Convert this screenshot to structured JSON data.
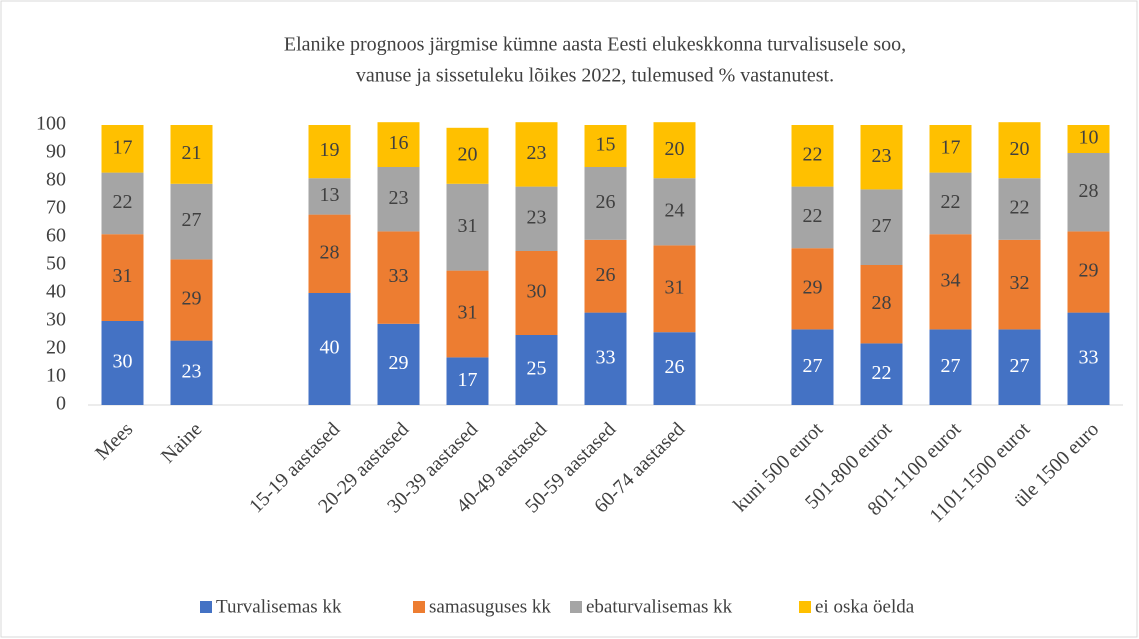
{
  "chart_data": {
    "type": "stacked_bar",
    "title": [
      "Elanike prognoos järgmise kümne aasta Eesti elukeskkonna turvalisusele soo,",
      "vanuse ja sissetuleku lõikes 2022, tulemused % vastanutest."
    ],
    "categories": [
      "Mees",
      "Naine",
      null,
      "15-19 aastased",
      "20-29 aastased",
      "30-39 aastased",
      "40-49 aastased",
      "50-59 aastased",
      "60-74 aastased",
      null,
      "kuni 500 eurot",
      "501-800 eurot",
      "801-1100 eurot",
      "1101-1500 eurot",
      "üle 1500 euro"
    ],
    "series": [
      {
        "name": "Turvalisemas kk",
        "color": "#4472c4",
        "values": [
          30,
          23,
          null,
          40,
          29,
          17,
          25,
          33,
          26,
          null,
          27,
          22,
          27,
          27,
          33
        ]
      },
      {
        "name": "samasuguses kk",
        "color": "#ed7d31",
        "values": [
          31,
          29,
          null,
          28,
          33,
          31,
          30,
          26,
          31,
          null,
          29,
          28,
          34,
          32,
          29
        ]
      },
      {
        "name": "ebaturvalisemas kk",
        "color": "#a5a5a5",
        "values": [
          22,
          27,
          null,
          13,
          23,
          31,
          23,
          26,
          24,
          null,
          22,
          27,
          22,
          22,
          28
        ]
      },
      {
        "name": "ei oska öelda",
        "color": "#ffc000",
        "values": [
          17,
          21,
          null,
          19,
          16,
          20,
          23,
          15,
          20,
          null,
          22,
          23,
          17,
          20,
          10
        ]
      }
    ],
    "ylim": [
      0,
      100
    ],
    "yticks": [
      0,
      10,
      20,
      30,
      40,
      50,
      60,
      70,
      80,
      90,
      100
    ],
    "grid": false,
    "legend": "bottom"
  }
}
